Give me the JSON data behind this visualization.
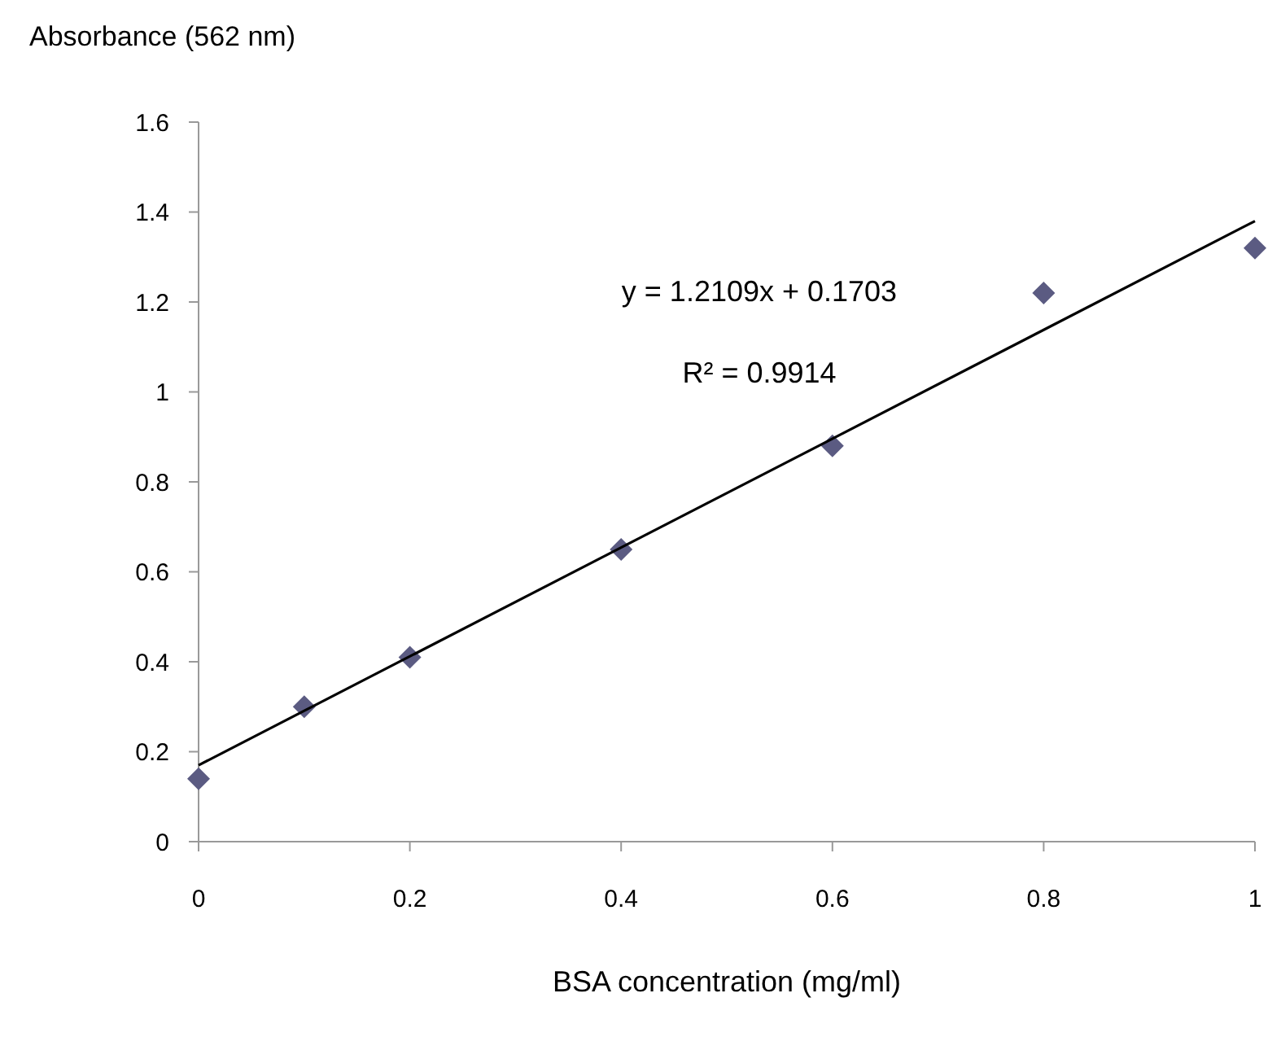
{
  "chart_data": {
    "type": "scatter",
    "xlabel": "BSA concentration (mg/ml)",
    "ylabel": "Absorbance (562 nm)",
    "xlim": [
      0,
      1
    ],
    "xticks": [
      0,
      0.2,
      0.4,
      0.6,
      0.8,
      1
    ],
    "ylim": [
      0,
      1.6
    ],
    "yticks": [
      0,
      0.2,
      0.4,
      0.6,
      0.8,
      1,
      1.2,
      1.4,
      1.6
    ],
    "grid": false,
    "marker": "diamond",
    "series": [
      {
        "color": "#5b5b82",
        "x": [
          0,
          0.1,
          0.2,
          0.4,
          0.6,
          0.8,
          1
        ],
        "values": [
          0.14,
          0.3,
          0.41,
          0.65,
          0.88,
          1.22,
          1.32
        ]
      },
      {
        "type": "line",
        "color": "#000000",
        "marker": "none",
        "line_style": "solid",
        "x": [
          0,
          1
        ],
        "values": [
          0.17,
          1.38
        ]
      }
    ],
    "annotations": [
      "y = 1.2109x + 0.1703",
      "R² = 0.9914"
    ]
  }
}
